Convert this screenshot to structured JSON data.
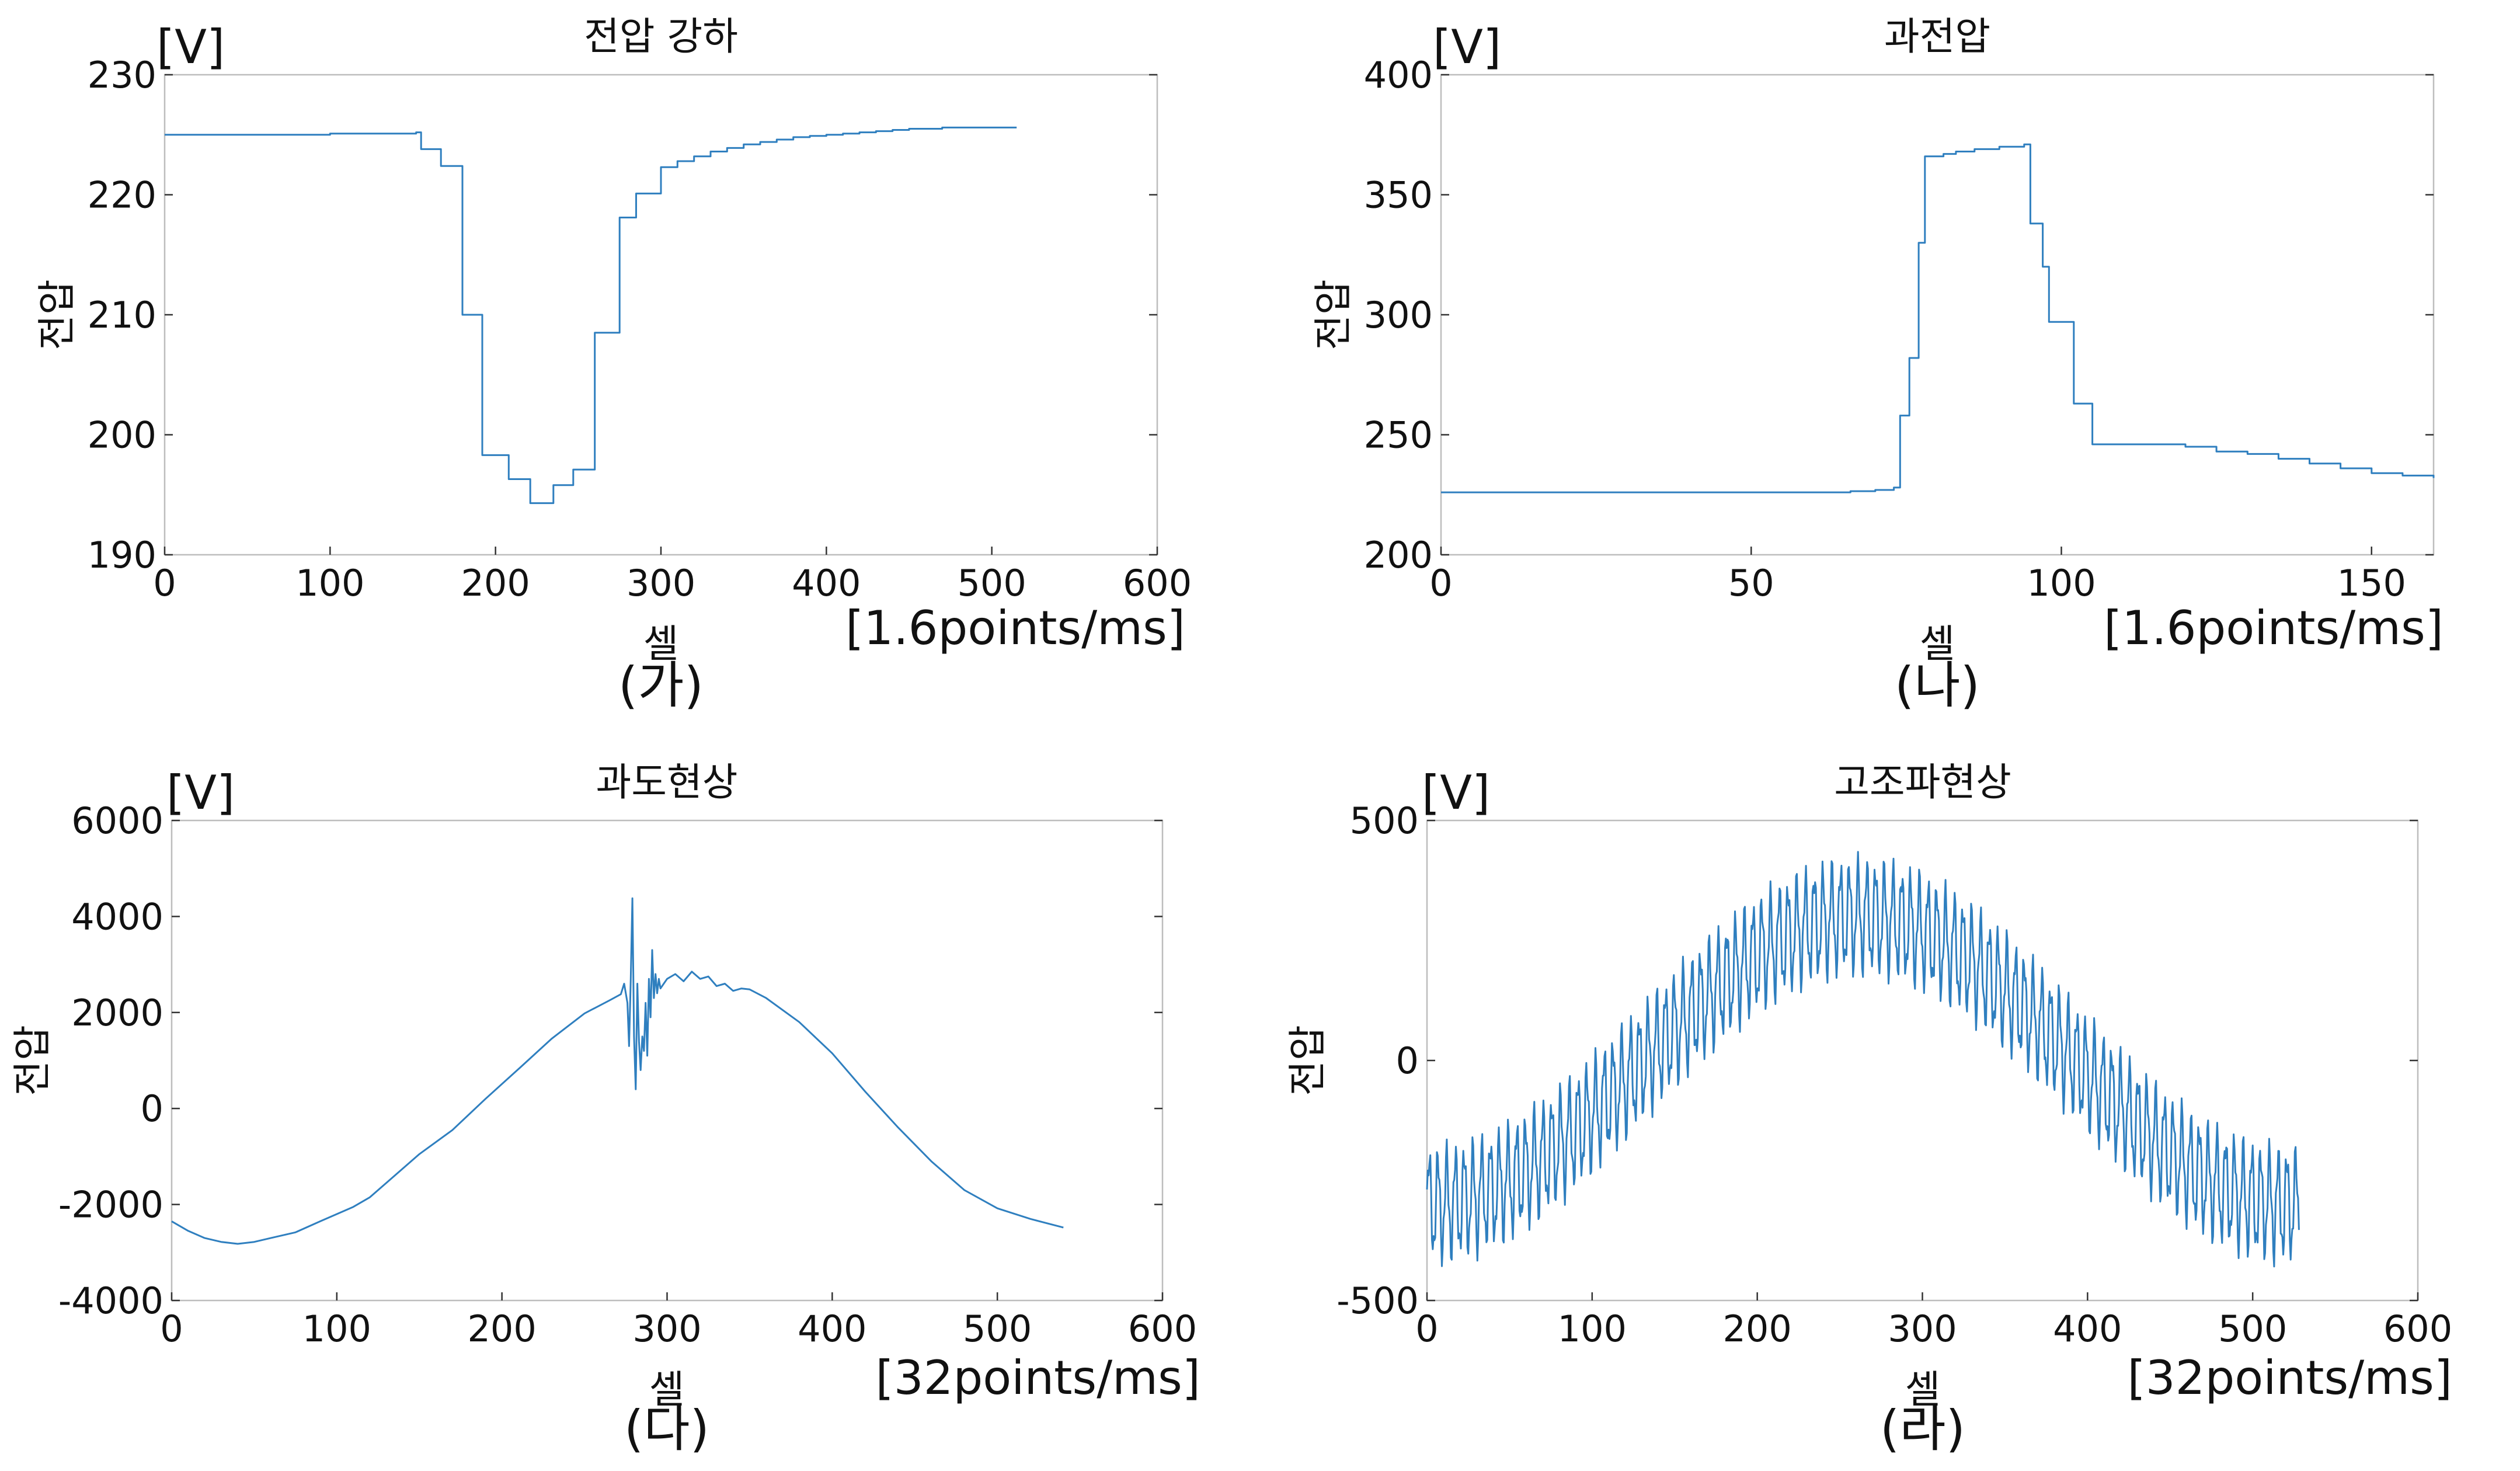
{
  "page": {
    "background": "#ffffff"
  },
  "chart_data": [
    {
      "id": "ga",
      "type": "line",
      "title": "전압 강하",
      "caption": "(가)",
      "xlabel": "셀",
      "ylabel": "전압",
      "yunit": "[V]",
      "xunit": "[1.6points/ms]",
      "xlim": [
        0,
        600
      ],
      "ylim": [
        190,
        230
      ],
      "xticks": [
        0,
        100,
        200,
        300,
        400,
        500,
        600
      ],
      "yticks": [
        190,
        200,
        210,
        220,
        230
      ],
      "grid": false,
      "color": "#2f7fbf",
      "mode": "step",
      "x": [
        0,
        100,
        152,
        155,
        167,
        180,
        192,
        195,
        208,
        221,
        235,
        247,
        260,
        263,
        275,
        285,
        298,
        300,
        310,
        320,
        330,
        340,
        350,
        360,
        370,
        380,
        390,
        400,
        410,
        420,
        430,
        440,
        450,
        460,
        470,
        480,
        515
      ],
      "y": [
        225.0,
        225.1,
        225.2,
        223.8,
        222.4,
        210.0,
        198.3,
        198.3,
        196.3,
        194.3,
        195.8,
        197.1,
        208.5,
        208.5,
        218.1,
        220.1,
        220.1,
        222.3,
        222.8,
        223.2,
        223.6,
        223.9,
        224.2,
        224.4,
        224.6,
        224.8,
        224.9,
        225.0,
        225.1,
        225.2,
        225.3,
        225.4,
        225.5,
        225.5,
        225.6,
        225.6,
        225.6
      ]
    },
    {
      "id": "na",
      "type": "line",
      "title": "과전압",
      "caption": "(나)",
      "xlabel": "셀",
      "ylabel": "전압",
      "yunit": "[V]",
      "xunit": "[1.6points/ms]",
      "xlim": [
        0,
        160
      ],
      "ylim": [
        200,
        400
      ],
      "xticks": [
        0,
        50,
        100,
        150
      ],
      "yticks": [
        200,
        250,
        300,
        350,
        400
      ],
      "grid": false,
      "color": "#2f7fbf",
      "mode": "step",
      "x": [
        0,
        40,
        65,
        66,
        70,
        73,
        74,
        75.5,
        77,
        78,
        81,
        83,
        86,
        90,
        94,
        95,
        97,
        98,
        101,
        102,
        104,
        105,
        110,
        115,
        120,
        125,
        130,
        135,
        140,
        145,
        150,
        155,
        160
      ],
      "y": [
        226,
        226,
        226,
        226.5,
        227,
        228,
        258,
        282,
        330,
        366,
        367,
        368,
        369,
        370,
        371,
        338,
        320,
        297,
        297,
        263,
        263,
        246,
        246,
        246,
        245,
        243,
        242,
        240,
        238,
        236,
        234,
        233,
        232
      ]
    },
    {
      "id": "da",
      "type": "line",
      "title": "과도현상",
      "caption": "(다)",
      "xlabel": "셀",
      "ylabel": "전압",
      "yunit": "[V]",
      "xunit": "[32points/ms]",
      "xlim": [
        0,
        600
      ],
      "ylim": [
        -4000,
        6000
      ],
      "xticks": [
        0,
        100,
        200,
        300,
        400,
        500,
        600
      ],
      "yticks": [
        -4000,
        -2000,
        0,
        2000,
        4000,
        6000
      ],
      "grid": false,
      "color": "#2f7fbf",
      "mode": "line",
      "x": [
        0,
        10,
        20,
        30,
        40,
        50,
        60,
        75,
        90,
        110,
        120,
        130,
        150,
        170,
        190,
        210,
        230,
        250,
        265,
        272,
        274,
        276,
        277,
        278,
        279,
        280,
        281,
        282,
        283,
        284,
        285,
        286,
        287,
        288,
        289,
        290,
        291,
        292,
        293,
        294,
        295,
        296,
        298,
        300,
        305,
        310,
        315,
        320,
        325,
        330,
        335,
        340,
        345,
        350,
        360,
        380,
        400,
        420,
        440,
        460,
        480,
        500,
        520,
        540
      ],
      "y": [
        -2350,
        -2550,
        -2700,
        -2780,
        -2820,
        -2780,
        -2700,
        -2580,
        -2350,
        -2050,
        -1850,
        -1550,
        -950,
        -450,
        200,
        820,
        1450,
        1980,
        2250,
        2380,
        2600,
        2200,
        1300,
        2700,
        4380,
        1500,
        400,
        2600,
        1400,
        800,
        1500,
        1200,
        2200,
        1100,
        2700,
        1900,
        3300,
        2300,
        2800,
        2400,
        2700,
        2500,
        2600,
        2700,
        2800,
        2650,
        2850,
        2700,
        2750,
        2550,
        2600,
        2450,
        2500,
        2480,
        2300,
        1800,
        1150,
        350,
        -400,
        -1100,
        -1700,
        -2080,
        -2300,
        -2480
      ]
    },
    {
      "id": "ra",
      "type": "line",
      "title": "고조파현상",
      "caption": "(라)",
      "xlabel": "셀",
      "ylabel": "전압",
      "yunit": "[V]",
      "xunit": "[32points/ms]",
      "xlim": [
        0,
        600
      ],
      "ylim": [
        -500,
        500
      ],
      "xticks": [
        0,
        100,
        200,
        300,
        400,
        500,
        600
      ],
      "yticks": [
        -500,
        0,
        500
      ],
      "grid": false,
      "color": "#2f7fbf",
      "mode": "harmonic",
      "x_end": 528,
      "fundamental_amplitude": 300,
      "fundamental_center": 262,
      "fundamental_period": 520,
      "ripple_amplitude": 100,
      "ripple_period": 5.3
    }
  ]
}
